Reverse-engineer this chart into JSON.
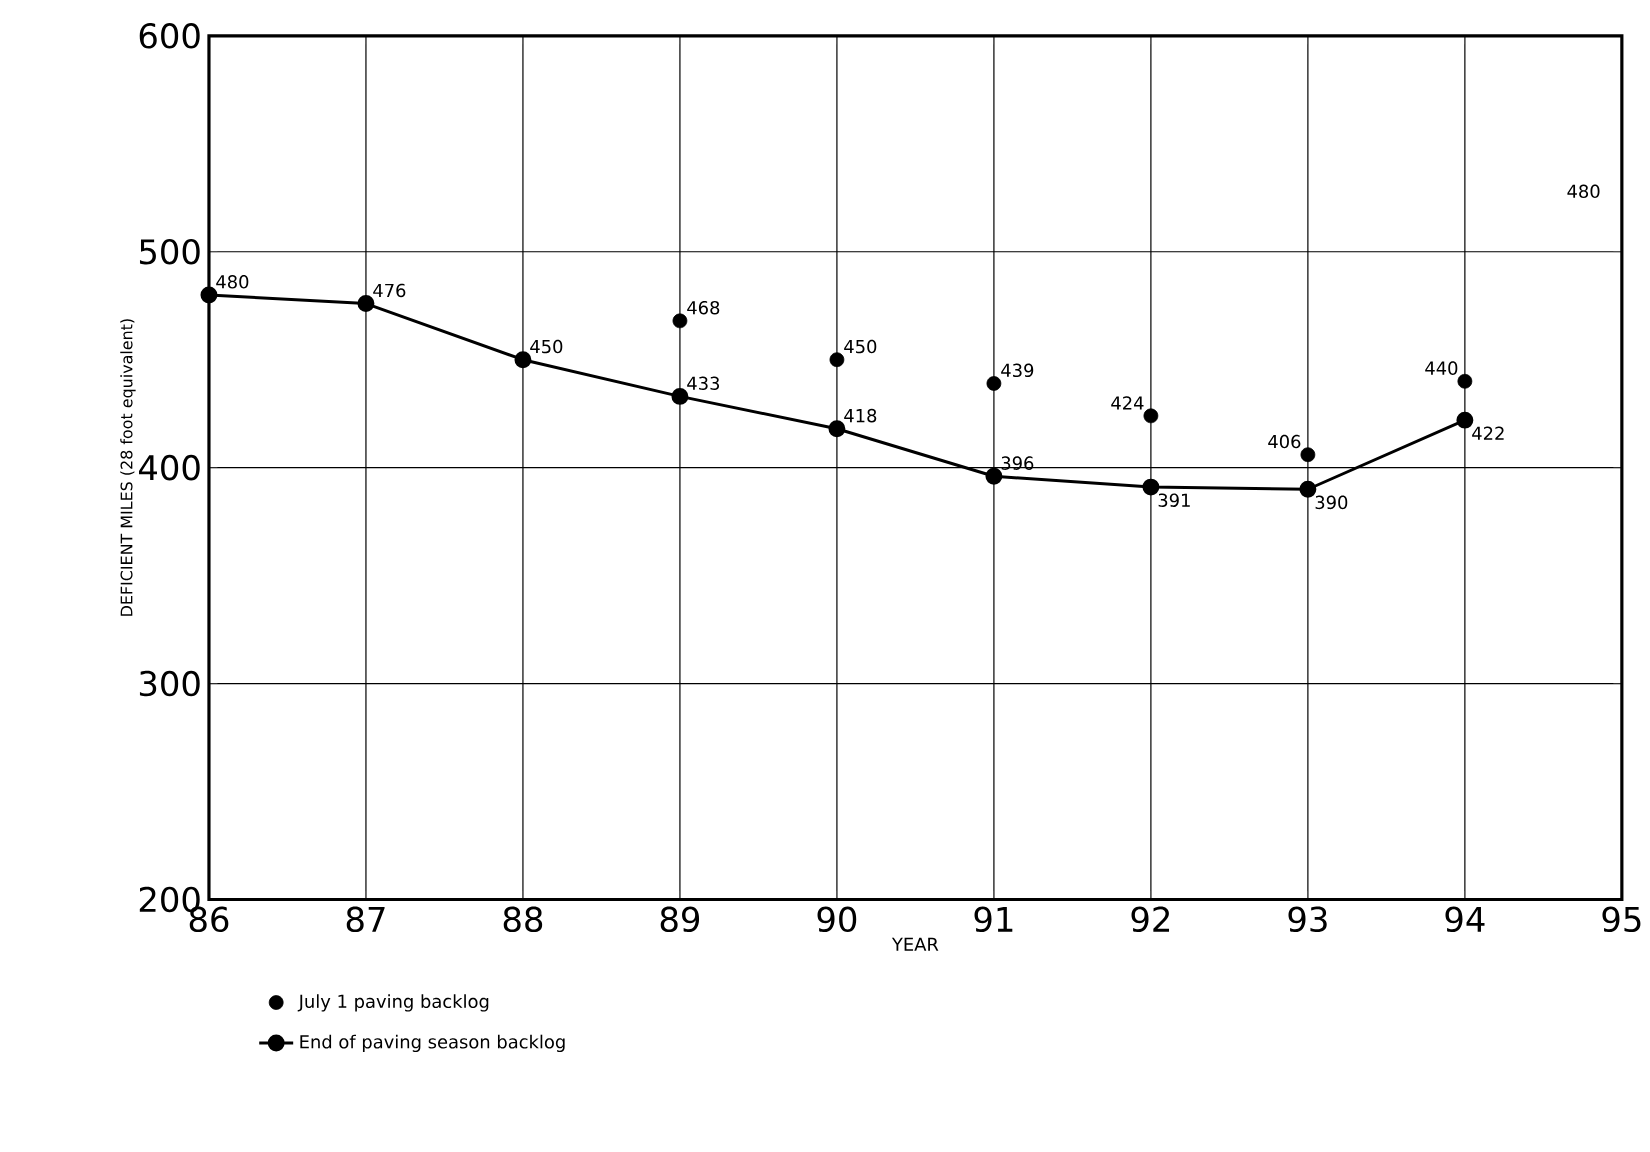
{
  "chart_data": {
    "type": "line",
    "xlabel": "YEAR",
    "ylabel": "DEFICIENT MILES (28 foot equivalent)",
    "xlim": [
      86,
      95
    ],
    "ylim": [
      200,
      600
    ],
    "xticks": [
      86,
      87,
      88,
      89,
      90,
      91,
      92,
      93,
      94,
      95
    ],
    "yticks": [
      200,
      300,
      400,
      500,
      600
    ],
    "grid": true,
    "legend": "bottom left",
    "data_labels": true,
    "annotations": [
      "480"
    ],
    "series": [
      {
        "name": "July 1 paving backlog",
        "type": "scatter",
        "marker": "circle",
        "color": "#000000",
        "x": [
          89,
          90,
          91,
          92,
          93,
          94
        ],
        "values": [
          468,
          450,
          439,
          424,
          406,
          440
        ]
      },
      {
        "name": "End of paving season backlog",
        "marker": "circle",
        "line_style": "solid",
        "color": "#000000",
        "x": [
          86,
          87,
          88,
          89,
          90,
          91,
          92,
          93,
          94
        ],
        "values": [
          480,
          476,
          450,
          433,
          418,
          396,
          391,
          390,
          422
        ]
      }
    ]
  }
}
